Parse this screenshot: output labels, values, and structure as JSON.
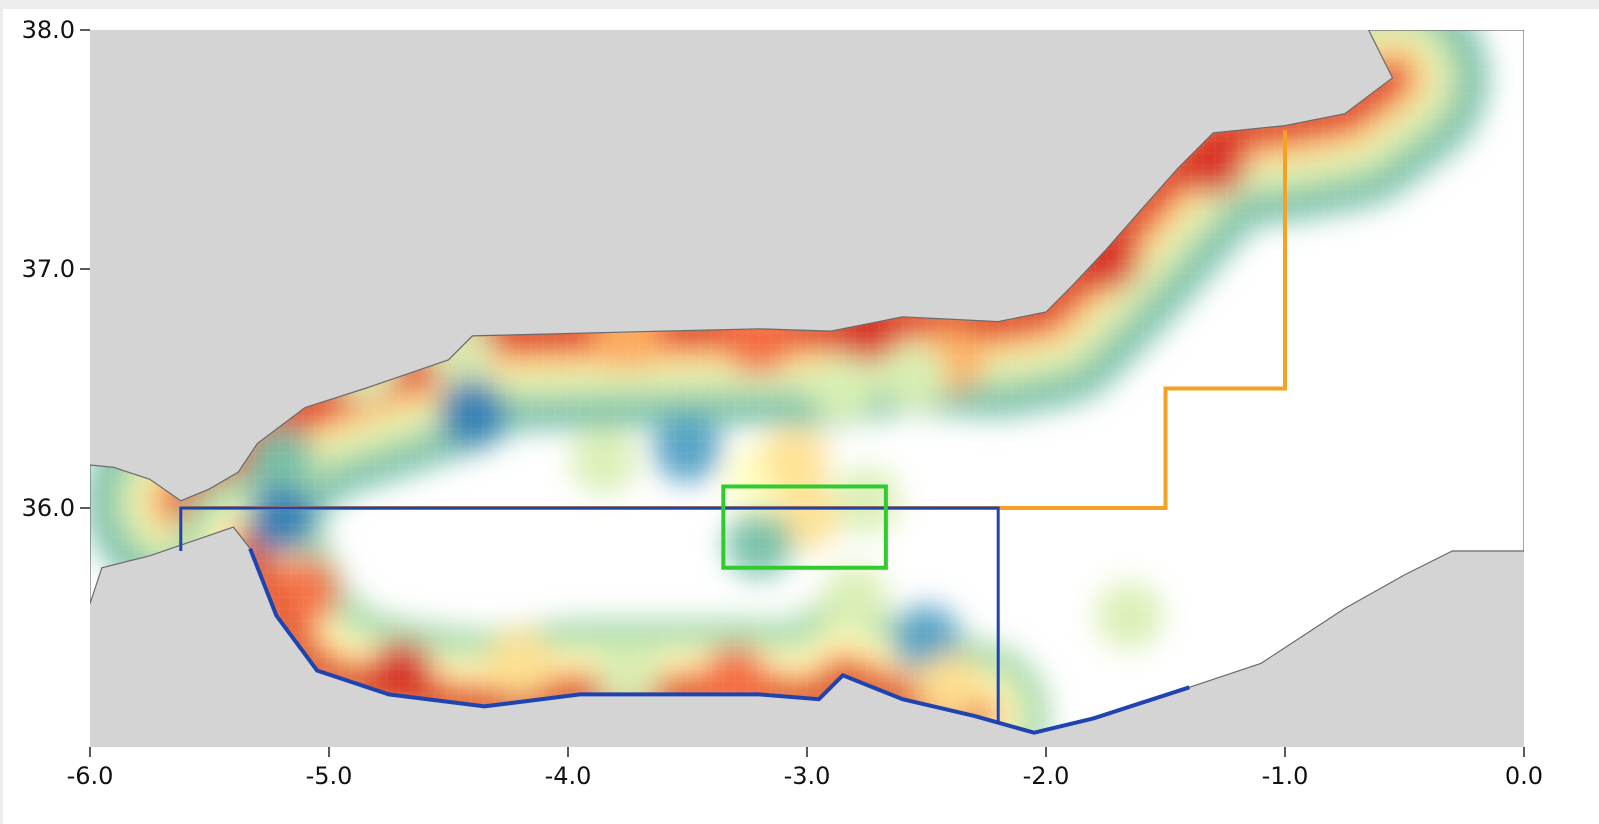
{
  "chart_data": {
    "type": "heatmap",
    "x_ticks": [
      "-6.0",
      "-5.0",
      "-4.0",
      "-3.0",
      "-2.0",
      "-1.0",
      "0.0"
    ],
    "y_ticks": [
      "38.0",
      "37.0",
      "36.0"
    ],
    "x_tick_values": [
      -6.0,
      -5.0,
      -4.0,
      -3.0,
      -2.0,
      -1.0,
      0.0
    ],
    "y_tick_values": [
      38.0,
      37.0,
      36.0
    ],
    "xlim": [
      -6.0,
      0.0
    ],
    "ylim": [
      35.05,
      38.0
    ],
    "grid": false,
    "colors": {
      "land": "#d4d4d4",
      "sea": "#ffffff",
      "coastline": "#6b6b6b",
      "north_boundary": "#f5a124",
      "south_boundary": "#1f44b0",
      "highlight_box": "#2fcb2f",
      "scale": [
        "#d73027",
        "#f46d43",
        "#fdae61",
        "#fee090",
        "#ffffbf",
        "#d9efb3",
        "#a6d9aa",
        "#74bfa8",
        "#4f9fc4",
        "#2c7bb6"
      ]
    },
    "north_boundary": [
      [
        -5.62,
        36.0
      ],
      [
        -1.5,
        36.0
      ],
      [
        -1.5,
        36.5
      ],
      [
        -1.0,
        36.5
      ],
      [
        -1.0,
        37.58
      ]
    ],
    "south_boundary": [
      [
        -5.62,
        35.82
      ],
      [
        -5.62,
        36.0
      ],
      [
        -2.2,
        36.0
      ],
      [
        -2.2,
        35.1
      ]
    ],
    "highlight_box": [
      -3.35,
      35.75,
      -2.67,
      36.09
    ],
    "hotspots": [
      {
        "lon": -4.85,
        "lat": 36.58,
        "value": 0.6
      },
      {
        "lon": -4.45,
        "lat": 36.65,
        "value": 0.5
      },
      {
        "lon": -3.75,
        "lat": 36.72,
        "value": 0.25
      },
      {
        "lon": -3.2,
        "lat": 36.7,
        "value": 0.1
      },
      {
        "lon": -2.75,
        "lat": 36.75,
        "value": 0.0
      },
      {
        "lon": -2.4,
        "lat": 36.62,
        "value": 0.2
      },
      {
        "lon": -1.75,
        "lat": 37.05,
        "value": 0.05
      },
      {
        "lon": -1.3,
        "lat": 37.45,
        "value": 0.0
      },
      {
        "lon": -4.4,
        "lat": 36.4,
        "value": 0.95
      },
      {
        "lon": -5.2,
        "lat": 36.2,
        "value": 0.8
      },
      {
        "lon": -5.2,
        "lat": 35.95,
        "value": 0.95
      },
      {
        "lon": -3.5,
        "lat": 36.25,
        "value": 0.9
      },
      {
        "lon": -3.85,
        "lat": 36.2,
        "value": 0.6
      },
      {
        "lon": -2.85,
        "lat": 36.5,
        "value": 0.5
      },
      {
        "lon": -2.55,
        "lat": 36.55,
        "value": 0.55
      },
      {
        "lon": -3.0,
        "lat": 35.97,
        "value": 0.3
      },
      {
        "lon": -3.2,
        "lat": 35.85,
        "value": 0.75
      },
      {
        "lon": -2.75,
        "lat": 36.03,
        "value": 0.6
      },
      {
        "lon": -5.1,
        "lat": 35.65,
        "value": 0.1
      },
      {
        "lon": -4.7,
        "lat": 35.3,
        "value": 0.05
      },
      {
        "lon": -4.2,
        "lat": 35.35,
        "value": 0.3
      },
      {
        "lon": -3.75,
        "lat": 35.3,
        "value": 0.5
      },
      {
        "lon": -3.3,
        "lat": 35.28,
        "value": 0.15
      },
      {
        "lon": -2.5,
        "lat": 35.45,
        "value": 0.9
      },
      {
        "lon": -2.4,
        "lat": 35.25,
        "value": 0.3
      },
      {
        "lon": -2.8,
        "lat": 35.62,
        "value": 0.6
      },
      {
        "lon": -1.65,
        "lat": 35.55,
        "value": 0.6
      },
      {
        "lon": -3.2,
        "lat": 36.12,
        "value": 0.4
      },
      {
        "lon": -3.05,
        "lat": 36.2,
        "value": 0.35
      }
    ]
  }
}
